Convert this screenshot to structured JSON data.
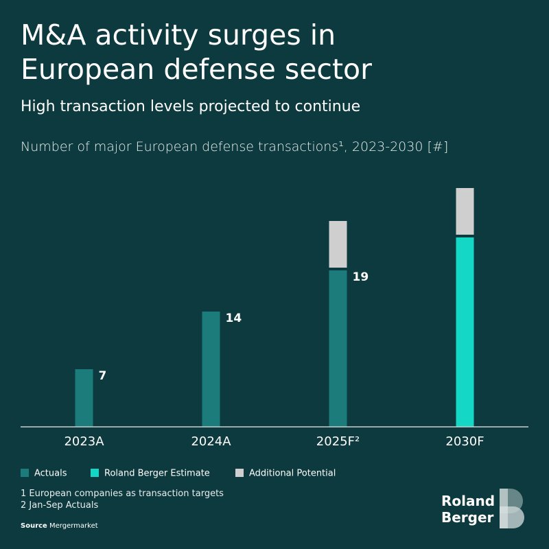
{
  "chart_data": {
    "type": "stacked_bar",
    "title": "M&A activity surges in European defense sector",
    "subtitle": "High transaction levels projected to continue",
    "axis_title": "Number of major European defense transactions¹, 2023-2030 [#]",
    "categories": [
      "2023A",
      "2024A",
      "2025F²",
      "2030F"
    ],
    "series": [
      {
        "name": "Actuals",
        "color": "#1b7c7b",
        "values": [
          7,
          14,
          19,
          null
        ],
        "show_labels": true
      },
      {
        "name": "Roland Berger Estimate",
        "color": "#14d8c5",
        "values": [
          null,
          null,
          null,
          23
        ],
        "show_labels": false
      },
      {
        "name": "Additional Potential",
        "color": "#cfcfcf",
        "values": [
          null,
          null,
          6,
          6
        ],
        "show_labels": false
      }
    ],
    "ylim": [
      0,
      30
    ]
  },
  "footnotes": [
    "1  European companies as transaction targets",
    "2  Jan-Sep Actuals"
  ],
  "source": {
    "label": "Source",
    "text": "Mergermarket"
  },
  "logo": [
    "Roland",
    "Berger"
  ]
}
